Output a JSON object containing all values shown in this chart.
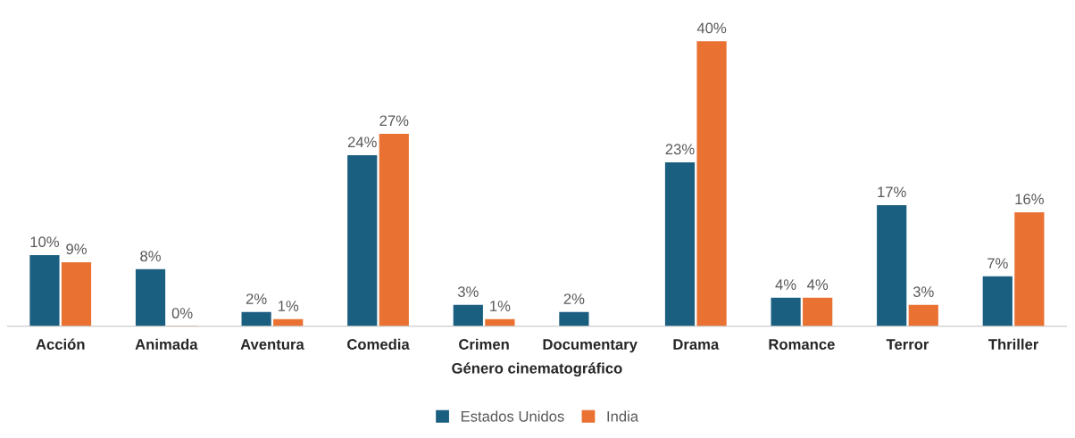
{
  "chart_data": {
    "type": "bar",
    "xlabel": "Género cinematográfico",
    "categories": [
      "Acción",
      "Animada",
      "Aventura",
      "Comedia",
      "Crimen",
      "Documentary",
      "Drama",
      "Romance",
      "Terror",
      "Thriller"
    ],
    "series": [
      {
        "name": "Estados Unidos",
        "color": "#1a5e80",
        "values": [
          10,
          8,
          2,
          24,
          3,
          2,
          23,
          4,
          17,
          7
        ],
        "value_labels": [
          "10%",
          "8%",
          "2%",
          "24%",
          "3%",
          "2%",
          "23%",
          "4%",
          "17%",
          "7%"
        ]
      },
      {
        "name": "India",
        "color": "#e97132",
        "values": [
          9,
          0,
          1,
          27,
          1,
          null,
          40,
          4,
          3,
          16
        ],
        "value_labels": [
          "9%",
          "0%",
          "1%",
          "27%",
          "1%",
          null,
          "40%",
          "4%",
          "3%",
          "16%"
        ]
      }
    ],
    "legend": "bottom",
    "grid": false
  }
}
